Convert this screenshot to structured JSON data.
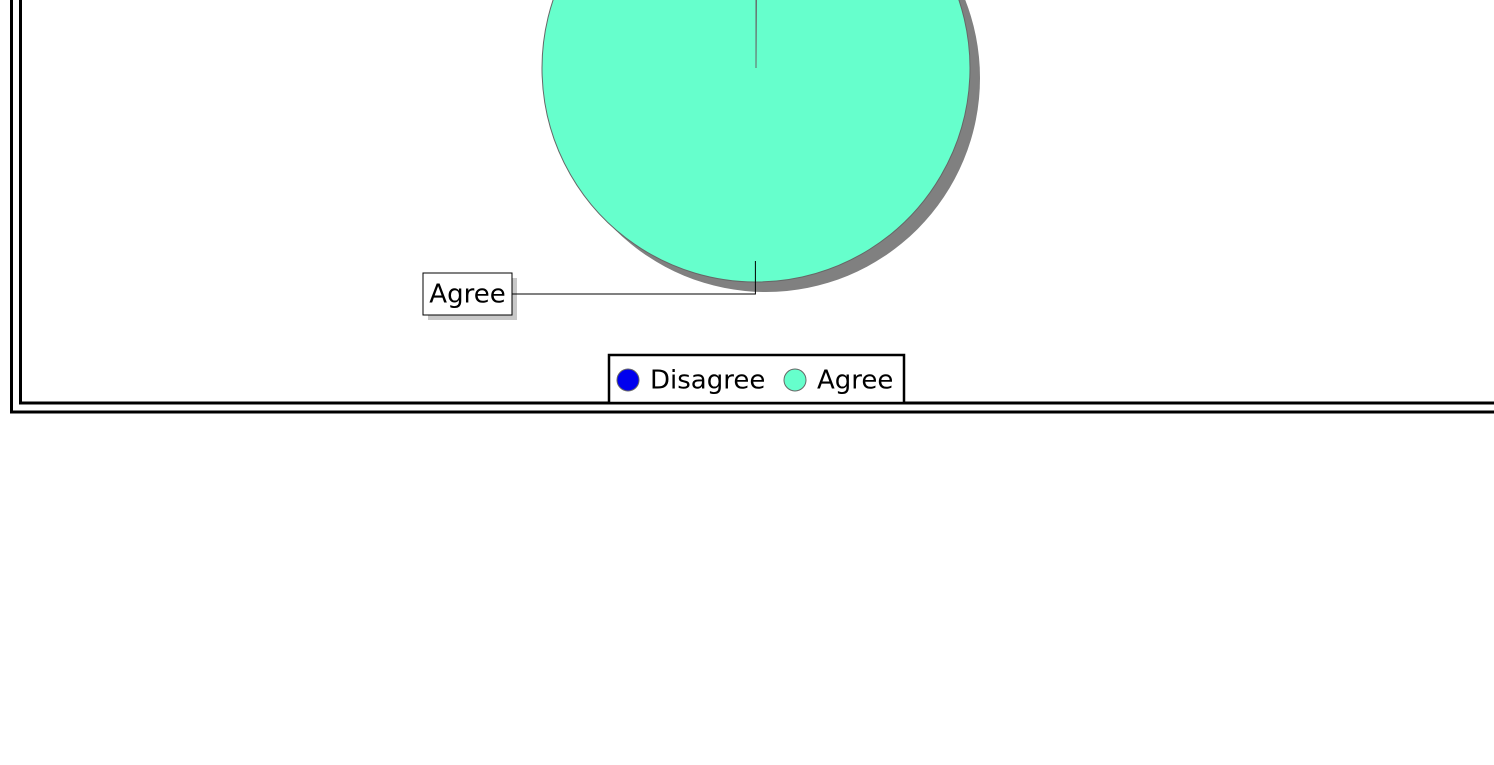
{
  "chart_data": {
    "type": "pie",
    "categories": [
      "Disagree",
      "Agree"
    ],
    "values": [
      0.1,
      99.9
    ],
    "colors": [
      "#0000ee",
      "#66ffcc"
    ],
    "legend": "bottom"
  }
}
